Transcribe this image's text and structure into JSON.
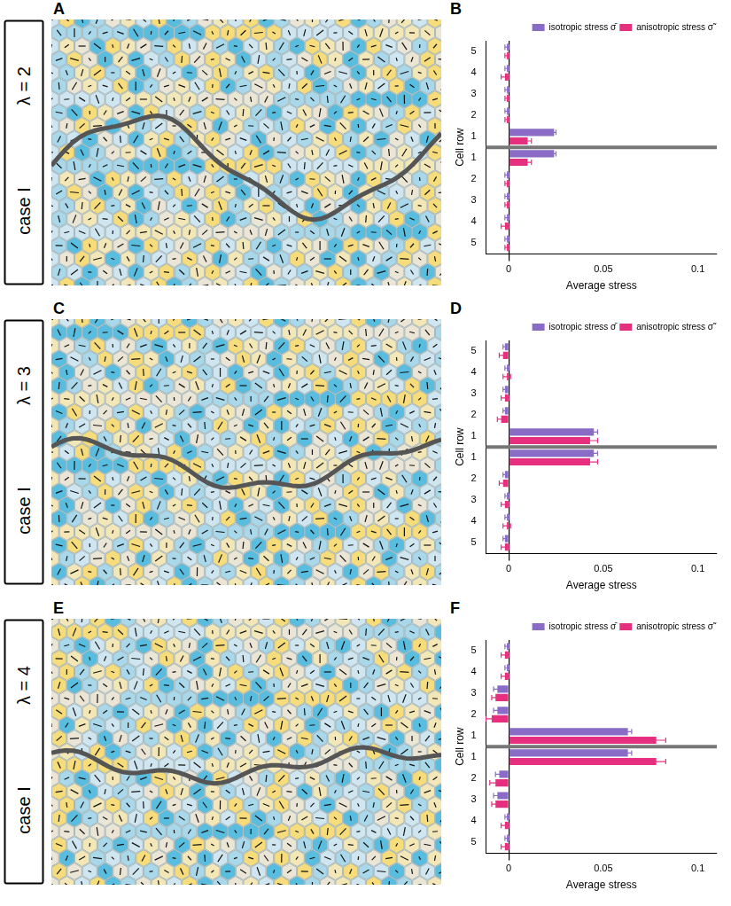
{
  "chart_data": [
    {
      "type": "bar",
      "orientation": "horizontal",
      "annotations": {
        "image_panel": "A",
        "chart_panel": "B",
        "case": "case I",
        "lambda": "λ = 2"
      },
      "xlabel": "Average stress",
      "ylabel": "Cell row",
      "categories": [
        "5",
        "4",
        "3",
        "2",
        "1",
        "1",
        "2",
        "3",
        "4",
        "5"
      ],
      "series": [
        {
          "name": "isotropic stress σ̄",
          "color": "#8a6cc6",
          "values": [
            -0.001,
            -0.001,
            -0.001,
            -0.001,
            0.024,
            0.024,
            -0.001,
            -0.001,
            -0.001,
            -0.001
          ],
          "errors": [
            0.001,
            0.001,
            0.001,
            0.001,
            0.001,
            0.001,
            0.001,
            0.001,
            0.001,
            0.001
          ]
        },
        {
          "name": "anisotropic stress σ̃",
          "color": "#e6307f",
          "values": [
            -0.001,
            -0.002,
            -0.001,
            -0.001,
            0.01,
            0.01,
            -0.001,
            -0.001,
            -0.002,
            -0.001
          ],
          "errors": [
            0.001,
            0.002,
            0.001,
            0.001,
            0.002,
            0.002,
            0.001,
            0.001,
            0.002,
            0.001
          ]
        }
      ],
      "xlim": [
        -0.012,
        0.11
      ],
      "xticks": [
        0,
        0.05,
        0.1
      ],
      "grid": false,
      "legend": "top-right"
    },
    {
      "type": "bar",
      "orientation": "horizontal",
      "annotations": {
        "image_panel": "C",
        "chart_panel": "D",
        "case": "case I",
        "lambda": "λ = 3"
      },
      "xlabel": "Average stress",
      "ylabel": "Cell row",
      "categories": [
        "5",
        "4",
        "3",
        "2",
        "1",
        "1",
        "2",
        "3",
        "4",
        "5"
      ],
      "series": [
        {
          "name": "isotropic stress σ̄",
          "color": "#8a6cc6",
          "values": [
            -0.002,
            -0.001,
            -0.002,
            -0.002,
            0.045,
            0.045,
            -0.002,
            -0.001,
            -0.001,
            -0.002
          ],
          "errors": [
            0.001,
            0.001,
            0.001,
            0.001,
            0.002,
            0.002,
            0.001,
            0.001,
            0.001,
            0.001
          ]
        },
        {
          "name": "anisotropic stress σ̃",
          "color": "#e6307f",
          "values": [
            -0.003,
            -0.001,
            -0.002,
            -0.004,
            0.043,
            0.043,
            -0.003,
            -0.002,
            -0.001,
            -0.002
          ],
          "errors": [
            0.002,
            0.002,
            0.002,
            0.002,
            0.004,
            0.004,
            0.002,
            0.002,
            0.002,
            0.002
          ]
        }
      ],
      "xlim": [
        -0.012,
        0.11
      ],
      "xticks": [
        0,
        0.05,
        0.1
      ],
      "grid": false,
      "legend": "top-right"
    },
    {
      "type": "bar",
      "orientation": "horizontal",
      "annotations": {
        "image_panel": "E",
        "chart_panel": "F",
        "case": "case I",
        "lambda": "λ = 4"
      },
      "xlabel": "Average stress",
      "ylabel": "Cell row",
      "categories": [
        "5",
        "4",
        "3",
        "2",
        "1",
        "1",
        "2",
        "3",
        "4",
        "5"
      ],
      "series": [
        {
          "name": "isotropic stress σ̄",
          "color": "#8a6cc6",
          "values": [
            -0.001,
            -0.001,
            -0.006,
            -0.006,
            0.063,
            0.063,
            -0.005,
            -0.006,
            -0.001,
            -0.001
          ],
          "errors": [
            0.001,
            0.001,
            0.002,
            0.002,
            0.002,
            0.002,
            0.002,
            0.002,
            0.001,
            0.001
          ]
        },
        {
          "name": "anisotropic stress σ̃",
          "color": "#e6307f",
          "values": [
            -0.002,
            -0.002,
            -0.007,
            -0.009,
            0.078,
            0.078,
            -0.007,
            -0.007,
            -0.002,
            -0.002
          ],
          "errors": [
            0.002,
            0.002,
            0.002,
            0.003,
            0.005,
            0.005,
            0.003,
            0.002,
            0.002,
            0.002
          ]
        }
      ],
      "xlim": [
        -0.012,
        0.11
      ],
      "xticks": [
        0,
        0.05,
        0.1
      ],
      "grid": false,
      "legend": "top-right"
    }
  ]
}
